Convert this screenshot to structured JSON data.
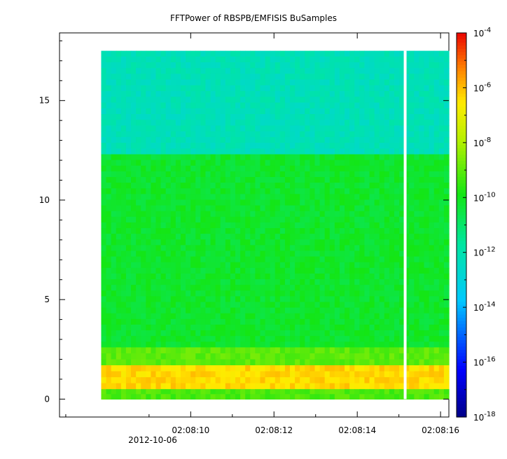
{
  "chart_data": {
    "type": "heatmap",
    "title": "FFTPower of RBSPB/EMFISIS  BuSamples",
    "xlabel": "",
    "ylabel": "",
    "x_ticks": [
      "02:08:10",
      "02:08:12",
      "02:08:14",
      "02:08:16"
    ],
    "x_tick_values": [
      10,
      12,
      14,
      16
    ],
    "x_sublabel": "2012-10-06",
    "x_range_seconds": [
      6.85,
      16.2
    ],
    "y_ticks": [
      "0",
      "5",
      "10",
      "15"
    ],
    "y_tick_values": [
      0,
      5,
      10,
      15
    ],
    "ylim": [
      -0.9,
      18.4
    ],
    "data_x_range_seconds": [
      7.85,
      16.2
    ],
    "data_y_range": [
      0,
      17.5
    ],
    "gap_at_seconds": 15.15,
    "colorbar": {
      "scale": "log",
      "range": [
        1e-18,
        0.0001
      ],
      "tick_bases": [
        "10",
        "10",
        "10",
        "10",
        "10",
        "10",
        "10",
        "10"
      ],
      "tick_exponents": [
        "-4",
        "-6",
        "-8",
        "-10",
        "-12",
        "-14",
        "-16",
        "-18"
      ],
      "tick_values": [
        -4,
        -6,
        -8,
        -10,
        -12,
        -14,
        -16,
        -18
      ]
    },
    "bands": [
      {
        "y_from": 12.3,
        "y_to": 17.5,
        "log10_power": -12.2
      },
      {
        "y_from": 2.6,
        "y_to": 12.3,
        "log10_power": -10.2
      },
      {
        "y_from": 1.7,
        "y_to": 2.6,
        "log10_power": -9.0
      },
      {
        "y_from": 0.5,
        "y_to": 1.7,
        "log10_power": -6.3
      },
      {
        "y_from": 0.0,
        "y_to": 0.5,
        "log10_power": -9.2
      }
    ],
    "grid": false
  }
}
